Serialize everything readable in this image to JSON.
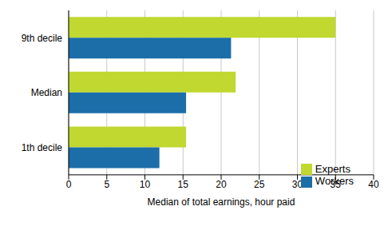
{
  "chart_data": {
    "type": "bar",
    "orientation": "horizontal",
    "x_label": "Median of total earnings, hour paid",
    "categories": [
      "9th decile",
      "Median",
      "1th decile"
    ],
    "series": [
      {
        "name": "Experts",
        "color": "#c0d82f",
        "values": [
          35,
          21.9,
          15.4
        ]
      },
      {
        "name": "Workers",
        "color": "#1b6ea8",
        "values": [
          21.3,
          15.4,
          11.9
        ]
      }
    ],
    "xlim": [
      0,
      40
    ],
    "xticks": [
      0,
      5,
      10,
      15,
      20,
      25,
      30,
      35,
      40
    ],
    "grid": true,
    "legend": "lower right"
  }
}
